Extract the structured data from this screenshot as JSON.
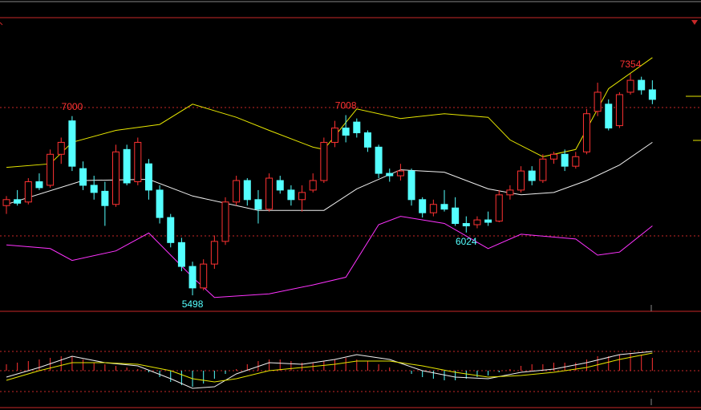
{
  "chart_data": {
    "type": "candlestick",
    "open": [
      6250,
      6300,
      6280,
      6450,
      6420,
      6680,
      6960,
      6560,
      6420,
      6370,
      6260,
      6720,
      6450,
      6600,
      6380,
      6150,
      5940,
      5740,
      5560,
      5760,
      5950,
      6280,
      6460,
      6300,
      6220,
      6460,
      6380,
      6300,
      6380,
      6460,
      6780,
      6900,
      6950,
      6860,
      6740,
      6520,
      6500,
      6540,
      6300,
      6190,
      6260,
      6230,
      6100,
      6090,
      6130,
      6120,
      6340,
      6380,
      6540,
      6460,
      6640,
      6680,
      6580,
      6700,
      7040,
      7100,
      6920,
      7200,
      7300,
      7220
    ],
    "high": [
      6330,
      6380,
      6480,
      6520,
      6720,
      6820,
      7000,
      6620,
      6500,
      6450,
      6760,
      6760,
      6820,
      6640,
      6420,
      6180,
      5980,
      5780,
      5800,
      6000,
      6320,
      6500,
      6480,
      6380,
      6520,
      6500,
      6420,
      6420,
      6520,
      6820,
      6960,
      7008,
      6980,
      6880,
      6760,
      6560,
      6600,
      6560,
      6320,
      6300,
      6380,
      6320,
      6160,
      6160,
      6200,
      6380,
      6420,
      6580,
      6580,
      6680,
      6700,
      6720,
      6700,
      7060,
      7280,
      7140,
      7200,
      7354,
      7330,
      7300
    ],
    "low": [
      6180,
      6250,
      6260,
      6380,
      6400,
      6600,
      6540,
      6380,
      6300,
      6080,
      6240,
      6420,
      6420,
      6300,
      6100,
      5900,
      5700,
      5498,
      5540,
      5720,
      5920,
      6250,
      6250,
      6100,
      6200,
      6350,
      6250,
      6200,
      6360,
      6440,
      6740,
      6780,
      6820,
      6700,
      6480,
      6450,
      6460,
      6250,
      6150,
      6160,
      6200,
      6080,
      6024,
      6060,
      6080,
      6110,
      6300,
      6360,
      6420,
      6440,
      6600,
      6540,
      6560,
      6680,
      7000,
      6880,
      6900,
      7180,
      7180,
      7100
    ],
    "close": [
      6300,
      6270,
      6450,
      6400,
      6680,
      6780,
      6580,
      6420,
      6360,
      6250,
      6700,
      6440,
      6780,
      6380,
      6150,
      5940,
      5740,
      5560,
      5760,
      5950,
      6280,
      6460,
      6300,
      6220,
      6480,
      6380,
      6300,
      6360,
      6460,
      6780,
      6900,
      6840,
      6860,
      6740,
      6520,
      6500,
      6540,
      6300,
      6190,
      6260,
      6220,
      6100,
      6080,
      6130,
      6110,
      6340,
      6380,
      6540,
      6460,
      6640,
      6680,
      6580,
      6660,
      7020,
      7200,
      6900,
      7180,
      7300,
      7220,
      7140
    ],
    "up_color": "#ff3232",
    "down_color": "#54ffff",
    "ylim": [
      5364,
      7825
    ],
    "high_labels": [
      6,
      31,
      57
    ],
    "low_labels": [
      17,
      42
    ],
    "overlays": [
      {
        "color": "#e6e600",
        "x": [
          0,
          4,
          6,
          10,
          14,
          17,
          21,
          24,
          28,
          29,
          32,
          36,
          40,
          44,
          46,
          49,
          52,
          55,
          59
        ],
        "values": [
          6570,
          6600,
          6780,
          6880,
          6930,
          7100,
          6990,
          6880,
          6740,
          6720,
          7060,
          6980,
          7020,
          6990,
          6800,
          6660,
          6720,
          7230,
          7490
        ]
      },
      {
        "color": "#f0f0f0",
        "x": [
          0,
          7,
          13,
          17,
          23,
          29,
          32,
          36,
          40,
          44,
          47,
          50,
          53,
          56,
          59
        ],
        "values": [
          6260,
          6460,
          6470,
          6330,
          6210,
          6210,
          6390,
          6550,
          6530,
          6390,
          6340,
          6360,
          6460,
          6590,
          6780
        ]
      },
      {
        "color": "#ff33ff",
        "x": [
          0,
          4,
          6,
          10,
          13,
          17,
          19,
          24,
          28,
          31,
          34,
          36,
          40,
          44,
          47,
          52,
          54,
          56,
          59
        ],
        "values": [
          5920,
          5890,
          5790,
          5870,
          6020,
          5650,
          5480,
          5510,
          5585,
          5650,
          6090,
          6160,
          6100,
          5890,
          6010,
          5970,
          5835,
          5860,
          6080
        ]
      }
    ],
    "macd": {
      "ylim": [
        -38,
        62
      ],
      "histogram": [
        8,
        10,
        12,
        14,
        16,
        18,
        18,
        14,
        10,
        8,
        6,
        4,
        2,
        -2,
        -8,
        -14,
        -18,
        -20,
        -16,
        -10,
        -4,
        2,
        8,
        12,
        14,
        14,
        12,
        10,
        10,
        12,
        14,
        16,
        14,
        12,
        8,
        4,
        0,
        -4,
        -8,
        -10,
        -12,
        -12,
        -10,
        -8,
        -6,
        -2,
        2,
        6,
        8,
        8,
        10,
        10,
        10,
        14,
        18,
        18,
        20,
        22,
        20,
        16
      ],
      "lines": [
        {
          "color": "#f0f0f0",
          "x": [
            0,
            3,
            6,
            9,
            12,
            15,
            17,
            19,
            21,
            24,
            27,
            30,
            32,
            35,
            38,
            41,
            44,
            47,
            50,
            53,
            56,
            59
          ],
          "values": [
            -8,
            4,
            18,
            10,
            6,
            -10,
            -22,
            -20,
            -4,
            10,
            8,
            14,
            20,
            14,
            0,
            -8,
            -10,
            -2,
            2,
            10,
            20,
            24
          ]
        },
        {
          "color": "#e6e600",
          "x": [
            0,
            3,
            6,
            9,
            12,
            15,
            17,
            19,
            21,
            24,
            27,
            30,
            32,
            35,
            38,
            41,
            44,
            47,
            50,
            53,
            56,
            59
          ],
          "values": [
            -12,
            0,
            10,
            10,
            8,
            0,
            -10,
            -14,
            -10,
            0,
            4,
            8,
            12,
            12,
            6,
            -2,
            -8,
            -6,
            -2,
            4,
            14,
            22
          ]
        }
      ]
    }
  }
}
